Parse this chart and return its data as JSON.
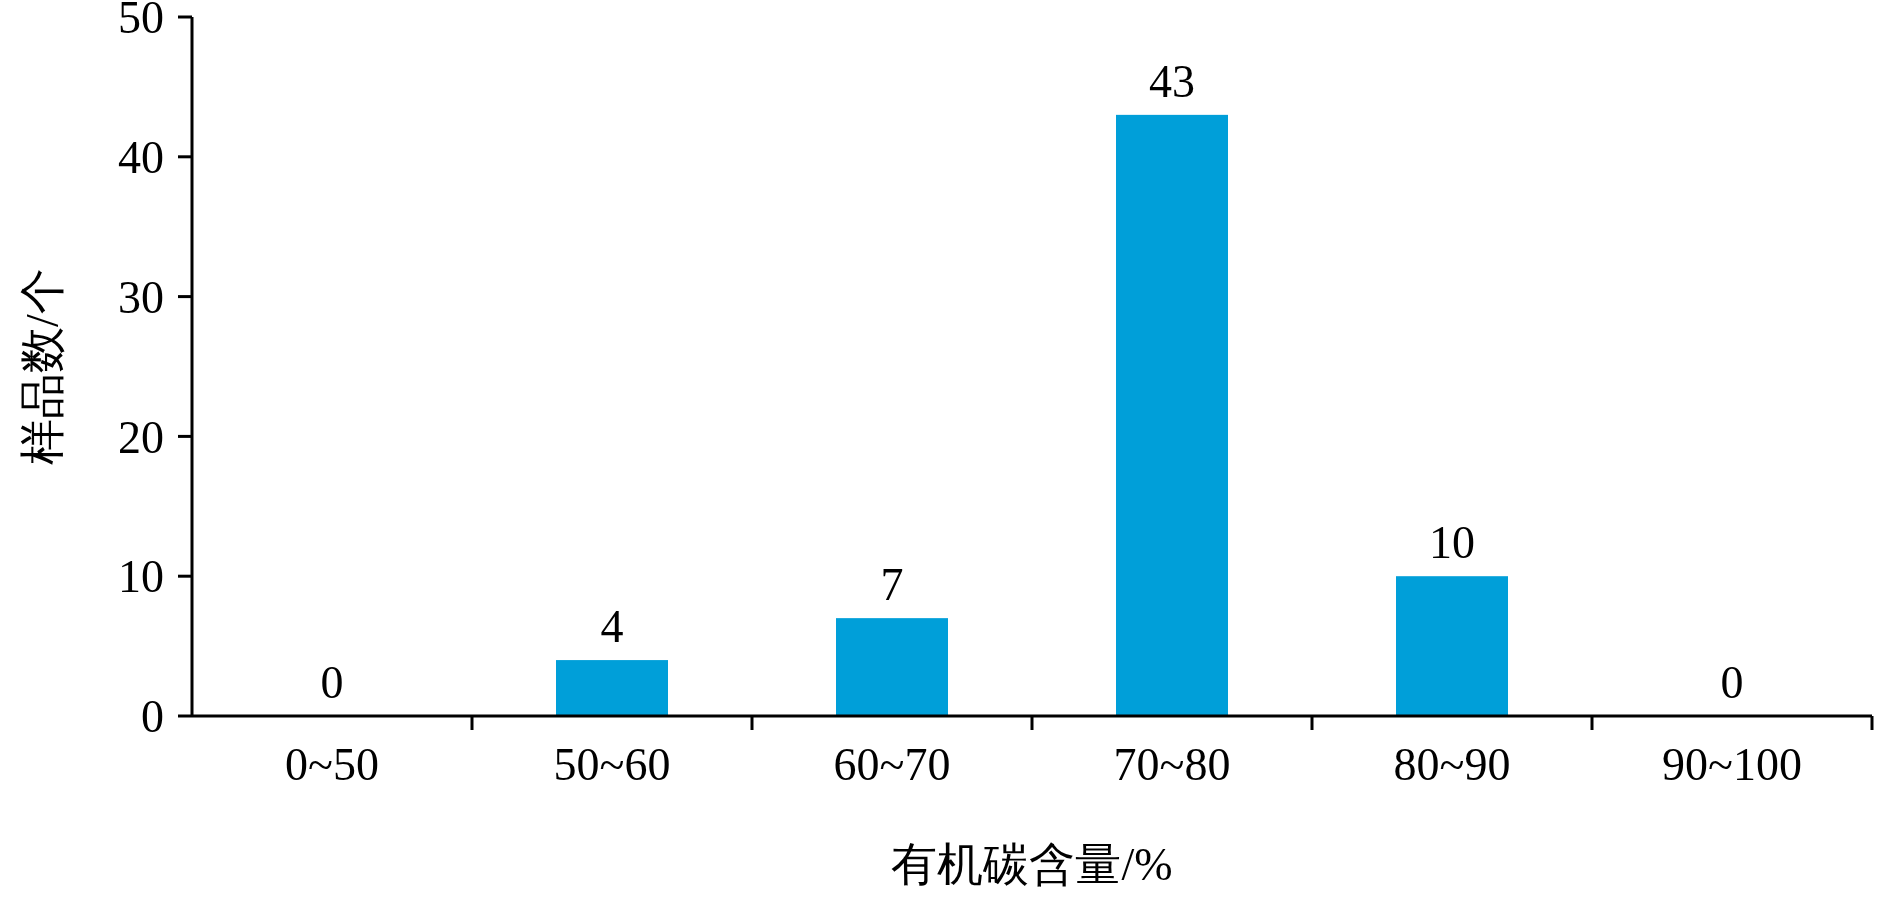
{
  "chart_data": {
    "type": "bar",
    "xlabel": "有机碳含量/%",
    "ylabel": "样品数/个",
    "categories": [
      "0~50",
      "50~60",
      "60~70",
      "70~80",
      "80~90",
      "90~100"
    ],
    "values": [
      0,
      4,
      7,
      43,
      10,
      0
    ],
    "color": "#009fd9",
    "ylim": [
      0,
      50
    ],
    "yticks": [
      0,
      10,
      20,
      30,
      40,
      50
    ],
    "grid": false,
    "data_labels": true
  }
}
